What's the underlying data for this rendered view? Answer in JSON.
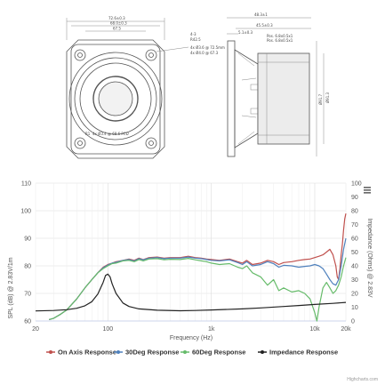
{
  "drawing": {
    "front_dims": {
      "outer_width": "72.6±0.3",
      "inner_width": "68.0±0.3",
      "bolt_spacing": "67.5",
      "hole_note": "4-3",
      "radius_note": "R42.5",
      "hole_pcd_1": "4x Ø3.6 @ 72.5mm",
      "hole_pcd_2": "4x Ø4.0 @ 67.3",
      "small_note": "R1",
      "lower_note": "4x Ø3.4 @ 68.6 PCD"
    },
    "side_dims": {
      "depth_total": "48.3±1",
      "depth_mount": "45.5±0.3",
      "flange_thk": "5.1±0.3",
      "terminal_pos": "Pos. 6.8x0.5x1",
      "terminal_neg": "Pos. 6.8x0.5x1",
      "height": "Ø91.7",
      "height2": "Ø91.3"
    }
  },
  "chart_data": {
    "type": "line",
    "xlabel": "Frequency (Hz)",
    "ylabel_left": "SPL (dB) @ 2.83V/1m",
    "ylabel_right": "Impedance (Ohms) @ 2.83V",
    "x_scale": "log",
    "xlim": [
      20,
      20000
    ],
    "ylim_left": [
      60,
      110
    ],
    "ylim_right": [
      0,
      100
    ],
    "x_ticks": [
      {
        "value": 20,
        "label": "20"
      },
      {
        "value": 100,
        "label": "100"
      },
      {
        "value": 1000,
        "label": "1k"
      },
      {
        "value": 10000,
        "label": "10k"
      },
      {
        "value": 20000,
        "label": "20k"
      }
    ],
    "y_ticks_left": [
      "60",
      "70",
      "80",
      "90",
      "100",
      "110"
    ],
    "y_ticks_right": [
      "0",
      "10",
      "20",
      "30",
      "40",
      "50",
      "60",
      "70",
      "80",
      "90",
      "100"
    ],
    "grid": true,
    "legend_position": "bottom",
    "credit": "Highcharts.com",
    "menu_icon": "hamburger-menu-icon",
    "series": [
      {
        "name": "On Axis Response",
        "axis": "left",
        "color": "#c0504d",
        "points": [
          [
            27,
            60.5
          ],
          [
            30,
            61
          ],
          [
            35,
            62.5
          ],
          [
            40,
            64
          ],
          [
            50,
            68
          ],
          [
            60,
            72
          ],
          [
            70,
            75
          ],
          [
            80,
            77.5
          ],
          [
            90,
            79.5
          ],
          [
            100,
            80.5
          ],
          [
            110,
            81
          ],
          [
            120,
            81.5
          ],
          [
            140,
            82
          ],
          [
            160,
            82.5
          ],
          [
            180,
            82
          ],
          [
            200,
            82.8
          ],
          [
            220,
            82.3
          ],
          [
            250,
            83
          ],
          [
            300,
            83.2
          ],
          [
            350,
            82.8
          ],
          [
            400,
            83
          ],
          [
            500,
            83
          ],
          [
            600,
            83.5
          ],
          [
            700,
            83
          ],
          [
            800,
            82.8
          ],
          [
            900,
            82.5
          ],
          [
            1000,
            82.3
          ],
          [
            1200,
            82
          ],
          [
            1500,
            82.5
          ],
          [
            1800,
            81.5
          ],
          [
            2000,
            81
          ],
          [
            2200,
            82
          ],
          [
            2500,
            80.5
          ],
          [
            3000,
            81
          ],
          [
            3500,
            82
          ],
          [
            4000,
            81.5
          ],
          [
            4500,
            80.5
          ],
          [
            5000,
            81.2
          ],
          [
            6000,
            81.5
          ],
          [
            7000,
            82
          ],
          [
            8000,
            82.3
          ],
          [
            9000,
            82.5
          ],
          [
            10000,
            83
          ],
          [
            11000,
            83.5
          ],
          [
            12000,
            84
          ],
          [
            13000,
            85
          ],
          [
            14000,
            86
          ],
          [
            15000,
            84
          ],
          [
            16000,
            80
          ],
          [
            16500,
            76
          ],
          [
            17000,
            75
          ],
          [
            17500,
            79
          ],
          [
            18000,
            84
          ],
          [
            18500,
            88
          ],
          [
            19000,
            93
          ],
          [
            19500,
            97
          ],
          [
            20000,
            99
          ]
        ]
      },
      {
        "name": "30Deg Response",
        "axis": "left",
        "color": "#4f81bd",
        "points": [
          [
            27,
            60.5
          ],
          [
            30,
            61
          ],
          [
            35,
            62.5
          ],
          [
            40,
            64
          ],
          [
            50,
            68
          ],
          [
            60,
            72
          ],
          [
            70,
            75
          ],
          [
            80,
            77.5
          ],
          [
            90,
            79.3
          ],
          [
            100,
            80.3
          ],
          [
            110,
            81
          ],
          [
            120,
            81.3
          ],
          [
            140,
            82
          ],
          [
            160,
            82.3
          ],
          [
            180,
            81.8
          ],
          [
            200,
            82.6
          ],
          [
            220,
            82.2
          ],
          [
            250,
            82.8
          ],
          [
            300,
            83
          ],
          [
            350,
            82.6
          ],
          [
            400,
            82.8
          ],
          [
            500,
            82.8
          ],
          [
            600,
            83.2
          ],
          [
            700,
            82.8
          ],
          [
            800,
            82.6
          ],
          [
            900,
            82.3
          ],
          [
            1000,
            82
          ],
          [
            1200,
            81.8
          ],
          [
            1500,
            82.2
          ],
          [
            1800,
            81.2
          ],
          [
            2000,
            80.5
          ],
          [
            2200,
            81.5
          ],
          [
            2500,
            80
          ],
          [
            3000,
            80.5
          ],
          [
            3500,
            81.5
          ],
          [
            4000,
            80.8
          ],
          [
            4500,
            79.5
          ],
          [
            5000,
            80.2
          ],
          [
            6000,
            80
          ],
          [
            7000,
            79.5
          ],
          [
            8000,
            79.8
          ],
          [
            9000,
            80
          ],
          [
            10000,
            80.5
          ],
          [
            11000,
            80
          ],
          [
            12000,
            79
          ],
          [
            13000,
            77
          ],
          [
            14000,
            75
          ],
          [
            15000,
            73.5
          ],
          [
            16000,
            73
          ],
          [
            17000,
            75
          ],
          [
            18000,
            80
          ],
          [
            19000,
            86
          ],
          [
            20000,
            90
          ]
        ]
      },
      {
        "name": "60Deg Response",
        "axis": "left",
        "color": "#66bb6a",
        "points": [
          [
            27,
            60.5
          ],
          [
            30,
            61
          ],
          [
            35,
            62.5
          ],
          [
            40,
            64
          ],
          [
            50,
            68
          ],
          [
            60,
            72
          ],
          [
            70,
            75
          ],
          [
            80,
            77.5
          ],
          [
            90,
            79
          ],
          [
            100,
            80
          ],
          [
            110,
            80.8
          ],
          [
            120,
            81
          ],
          [
            140,
            81.8
          ],
          [
            160,
            82
          ],
          [
            180,
            81.5
          ],
          [
            200,
            82.3
          ],
          [
            220,
            81.8
          ],
          [
            250,
            82.5
          ],
          [
            300,
            82.6
          ],
          [
            350,
            82.2
          ],
          [
            400,
            82.4
          ],
          [
            500,
            82.3
          ],
          [
            600,
            82.7
          ],
          [
            700,
            82.2
          ],
          [
            800,
            81.8
          ],
          [
            900,
            81.5
          ],
          [
            1000,
            81
          ],
          [
            1200,
            80.5
          ],
          [
            1500,
            80.8
          ],
          [
            1800,
            79.5
          ],
          [
            2000,
            79
          ],
          [
            2200,
            80
          ],
          [
            2500,
            77.5
          ],
          [
            3000,
            76
          ],
          [
            3500,
            73
          ],
          [
            4000,
            75
          ],
          [
            4500,
            71
          ],
          [
            5000,
            72
          ],
          [
            6000,
            70.5
          ],
          [
            7000,
            71
          ],
          [
            8000,
            70
          ],
          [
            9000,
            68
          ],
          [
            10000,
            63
          ],
          [
            10500,
            60
          ],
          [
            11000,
            65
          ],
          [
            12000,
            72
          ],
          [
            13000,
            74
          ],
          [
            14000,
            72
          ],
          [
            15000,
            70
          ],
          [
            16000,
            71
          ],
          [
            17000,
            73
          ],
          [
            18000,
            76
          ],
          [
            19000,
            80
          ],
          [
            20000,
            83
          ]
        ]
      },
      {
        "name": "Impedance Response",
        "axis": "right",
        "color": "#222222",
        "points": [
          [
            20,
            7.3
          ],
          [
            30,
            7.6
          ],
          [
            40,
            8.2
          ],
          [
            50,
            9.2
          ],
          [
            60,
            11
          ],
          [
            70,
            14
          ],
          [
            80,
            19.5
          ],
          [
            90,
            28
          ],
          [
            95,
            33
          ],
          [
            100,
            34
          ],
          [
            105,
            32
          ],
          [
            110,
            27
          ],
          [
            120,
            20
          ],
          [
            140,
            13
          ],
          [
            160,
            10.5
          ],
          [
            200,
            8.8
          ],
          [
            300,
            7.8
          ],
          [
            500,
            7.4
          ],
          [
            700,
            7.6
          ],
          [
            1000,
            8
          ],
          [
            2000,
            8.8
          ],
          [
            3000,
            9.5
          ],
          [
            5000,
            10.5
          ],
          [
            7000,
            11.2
          ],
          [
            10000,
            12
          ],
          [
            15000,
            12.8
          ],
          [
            20000,
            13.5
          ]
        ]
      }
    ]
  }
}
